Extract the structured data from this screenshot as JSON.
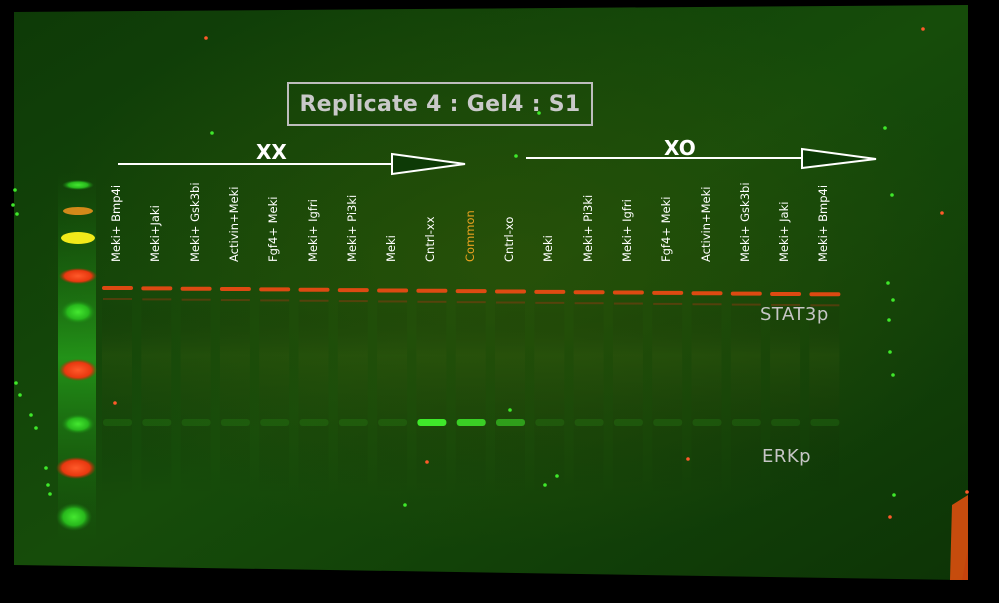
{
  "title": "Replicate 4 : Gel4 : S1",
  "groups": [
    {
      "label": "XX"
    },
    {
      "label": "XO"
    }
  ],
  "lanes": [
    {
      "label": "Meki+ Bmp4i",
      "color": "#ffffff"
    },
    {
      "label": "Meki+Jaki",
      "color": "#ffffff"
    },
    {
      "label": "Meki+ Gsk3bi",
      "color": "#ffffff"
    },
    {
      "label": "Activin+Meki",
      "color": "#ffffff"
    },
    {
      "label": "Fgf4+ Meki",
      "color": "#ffffff"
    },
    {
      "label": "Meki+ Igfri",
      "color": "#ffffff"
    },
    {
      "label": "Meki+ Pi3ki",
      "color": "#ffffff"
    },
    {
      "label": "Meki",
      "color": "#ffffff"
    },
    {
      "label": "Cntrl-xx",
      "color": "#ffffff"
    },
    {
      "label": "Common",
      "color": "#e9a21f"
    },
    {
      "label": "Cntrl-xo",
      "color": "#ffffff"
    },
    {
      "label": "Meki",
      "color": "#ffffff"
    },
    {
      "label": "Meki+ Pi3ki",
      "color": "#ffffff"
    },
    {
      "label": "Meki+ Igfri",
      "color": "#ffffff"
    },
    {
      "label": "Fgf4+ Meki",
      "color": "#ffffff"
    },
    {
      "label": "Activin+Meki",
      "color": "#ffffff"
    },
    {
      "label": "Meki+ Gsk3bi",
      "color": "#ffffff"
    },
    {
      "label": "Meki+ Jaki",
      "color": "#ffffff"
    },
    {
      "label": "Meki+ Bmp4i",
      "color": "#ffffff"
    }
  ],
  "bands": [
    {
      "label": "STAT3p"
    },
    {
      "label": "ERKp"
    }
  ]
}
